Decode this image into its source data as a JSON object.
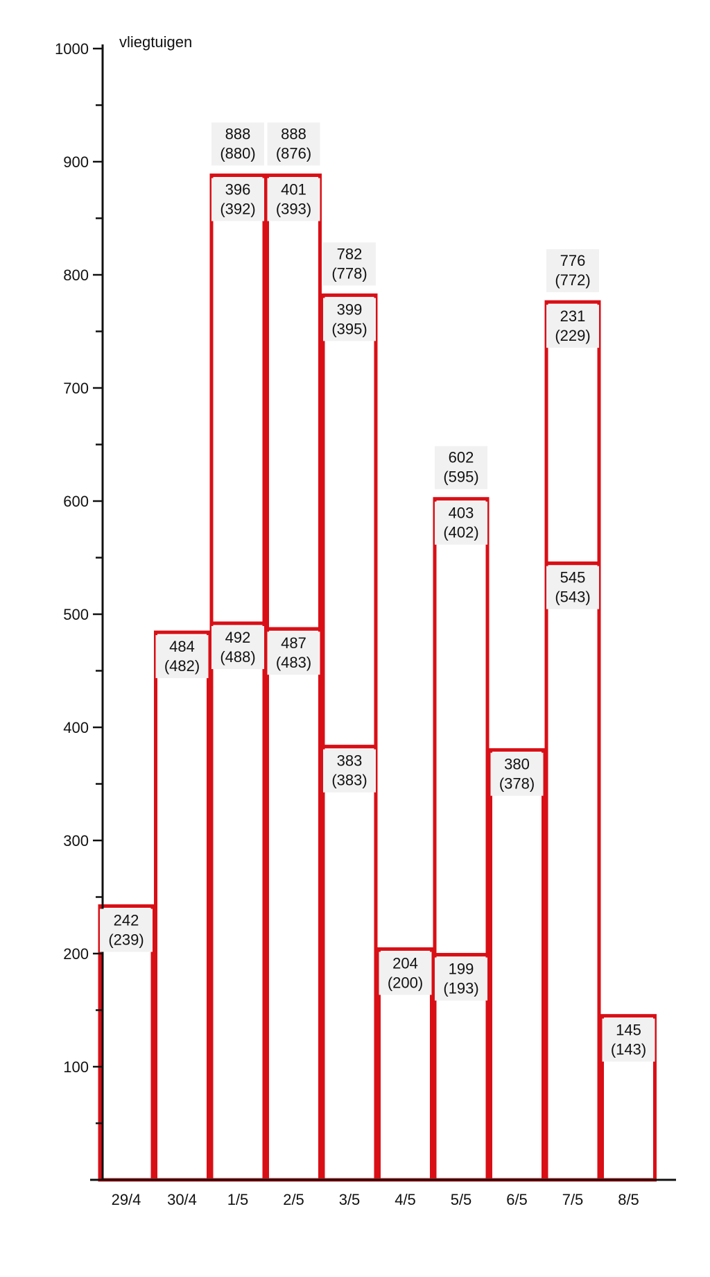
{
  "chart_data": {
    "type": "bar",
    "stacked": true,
    "title": "",
    "xlabel": "",
    "ylabel": "vliegtuigen",
    "ylim": [
      0,
      1000
    ],
    "y_ticks": [
      "100",
      "200",
      "300",
      "400",
      "500",
      "600",
      "700",
      "800",
      "900",
      "1000"
    ],
    "grid": false,
    "colors": {
      "bar_outline": "#d90f16",
      "axis": "#111111",
      "background": "#ffffff"
    },
    "categories": [
      "29/4",
      "30/4",
      "1/5",
      "2/5",
      "3/5",
      "4/5",
      "5/5",
      "6/5",
      "7/5",
      "8/5"
    ],
    "series": [
      {
        "values": [
          242,
          484,
          492,
          487,
          383,
          204,
          199,
          380,
          545,
          145
        ],
        "labels": [
          "242\n(239)",
          "484\n(482)",
          "492\n(488)",
          "487\n(483)",
          "383\n(383)",
          "204\n(200)",
          "199\n(193)",
          "380\n(378)",
          "545\n(543)",
          "145\n(143)"
        ]
      },
      {
        "values": [
          0,
          0,
          396,
          401,
          399,
          0,
          403,
          0,
          231,
          0
        ],
        "labels": [
          "",
          "",
          "396\n(392)",
          "401\n(393)",
          "399\n(395)",
          "",
          "403\n(402)",
          "",
          "231\n(229)",
          ""
        ]
      }
    ],
    "totals": {
      "values": [
        null,
        null,
        888,
        888,
        782,
        null,
        602,
        null,
        776,
        null
      ],
      "labels": [
        "",
        "",
        "888\n(880)",
        "888\n(876)",
        "782\n(778)",
        "",
        "602\n(595)",
        "",
        "776\n(772)",
        ""
      ]
    }
  }
}
